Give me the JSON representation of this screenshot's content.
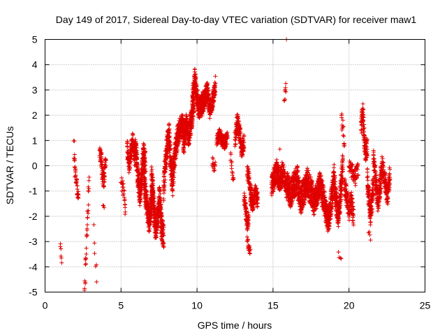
{
  "chart_data": {
    "type": "scatter",
    "title": "Day 149 of 2017, Sidereal Day-to-day VTEC variation (SDTVAR) for receiver maw1",
    "xlabel": "GPS time / hours",
    "ylabel": "SDTVAR / TECUs",
    "xlim": [
      0,
      25
    ],
    "ylim": [
      -5,
      5
    ],
    "xticks": [
      "0",
      "5",
      "10",
      "15",
      "20",
      "25"
    ],
    "yticks": [
      "-5",
      "-4",
      "-3",
      "-2",
      "-1",
      "0",
      "1",
      "2",
      "3",
      "4",
      "5"
    ],
    "grid": true,
    "marker": "+",
    "marker_color": "#e00000",
    "series": [
      {
        "name": "SDTVAR",
        "segments": [
          {
            "x0": 1.0,
            "x1": 1.1,
            "knots": [
              -3.0,
              -3.3,
              -3.7
            ],
            "spread": 0.2,
            "n": 6
          },
          {
            "x0": 1.9,
            "x1": 2.2,
            "knots": [
              0.8,
              -0.2,
              -0.5,
              -1.0,
              -1.3
            ],
            "spread": 0.3,
            "n": 40
          },
          {
            "x0": 2.6,
            "x1": 2.9,
            "knots": [
              -4.7,
              -3.9,
              -2.5,
              -1.8,
              -0.3
            ],
            "spread": 0.4,
            "n": 30
          },
          {
            "x0": 3.2,
            "x1": 3.4,
            "knots": [
              -2.5,
              -4.0,
              -4.3
            ],
            "spread": 0.3,
            "n": 6
          },
          {
            "x0": 3.6,
            "x1": 4.0,
            "knots": [
              0.6,
              0.3,
              -0.4,
              -0.6,
              0.5
            ],
            "spread": 0.35,
            "n": 80
          },
          {
            "x0": 3.8,
            "x1": 3.9,
            "knots": [
              -1.5,
              -1.6
            ],
            "spread": 0.1,
            "n": 3
          },
          {
            "x0": 5.0,
            "x1": 5.3,
            "knots": [
              -0.7,
              -0.8,
              -1.2,
              -2.0
            ],
            "spread": 0.3,
            "n": 25
          },
          {
            "x0": 5.4,
            "x1": 5.9,
            "knots": [
              0.8,
              0.0,
              0.5,
              1.0,
              0.3
            ],
            "spread": 0.35,
            "n": 120
          },
          {
            "x0": 5.9,
            "x1": 6.6,
            "knots": [
              0.8,
              0.3,
              -0.6,
              -1.2,
              -0.4,
              0.5,
              0.2
            ],
            "spread": 0.45,
            "n": 260
          },
          {
            "x0": 6.5,
            "x1": 7.1,
            "knots": [
              -0.3,
              -1.2,
              -1.8,
              -2.2,
              -1.6,
              -0.8
            ],
            "spread": 0.45,
            "n": 260
          },
          {
            "x0": 7.0,
            "x1": 7.8,
            "knots": [
              -0.4,
              -1.5,
              -2.5,
              -2.2,
              -1.2,
              -2.4,
              -2.8
            ],
            "spread": 0.5,
            "n": 320
          },
          {
            "x0": 7.8,
            "x1": 8.4,
            "knots": [
              -1.0,
              0.2,
              0.8,
              1.2,
              0.0,
              -0.8
            ],
            "spread": 0.5,
            "n": 200
          },
          {
            "x0": 8.4,
            "x1": 9.2,
            "knots": [
              -0.5,
              0.5,
              1.2,
              1.5,
              1.6,
              1.3
            ],
            "spread": 0.45,
            "n": 240
          },
          {
            "x0": 9.1,
            "x1": 9.8,
            "knots": [
              0.8,
              1.6,
              1.2,
              1.8,
              2.6
            ],
            "spread": 0.45,
            "n": 220
          },
          {
            "x0": 9.7,
            "x1": 10.4,
            "knots": [
              2.5,
              3.5,
              2.8,
              2.2,
              2.4,
              2.6
            ],
            "spread": 0.4,
            "n": 240
          },
          {
            "x0": 10.3,
            "x1": 11.2,
            "knots": [
              2.3,
              2.6,
              3.0,
              2.2,
              2.6,
              3.2
            ],
            "spread": 0.35,
            "n": 240
          },
          {
            "x0": 11.0,
            "x1": 11.2,
            "knots": [
              0.2,
              -0.1,
              0.1
            ],
            "spread": 0.2,
            "n": 15
          },
          {
            "x0": 11.3,
            "x1": 12.0,
            "knots": [
              1.0,
              1.3,
              1.0,
              0.9,
              1.1
            ],
            "spread": 0.25,
            "n": 150
          },
          {
            "x0": 12.2,
            "x1": 12.4,
            "knots": [
              0.4,
              -0.1,
              -0.6
            ],
            "spread": 0.2,
            "n": 15
          },
          {
            "x0": 12.5,
            "x1": 13.1,
            "knots": [
              1.0,
              1.8,
              1.3,
              0.6,
              0.9
            ],
            "spread": 0.35,
            "n": 140
          },
          {
            "x0": 13.1,
            "x1": 13.4,
            "knots": [
              -1.2,
              -1.8,
              -2.3,
              -2.0
            ],
            "spread": 0.3,
            "n": 70
          },
          {
            "x0": 13.3,
            "x1": 13.5,
            "knots": [
              -2.9,
              -3.2,
              -3.4
            ],
            "spread": 0.15,
            "n": 20
          },
          {
            "x0": 13.3,
            "x1": 13.6,
            "knots": [
              -0.2,
              -0.6,
              -1.2
            ],
            "spread": 0.3,
            "n": 50
          },
          {
            "x0": 13.5,
            "x1": 14.0,
            "knots": [
              -1.2,
              -1.5,
              -1.1,
              -1.4
            ],
            "spread": 0.35,
            "n": 110
          },
          {
            "x0": 14.9,
            "x1": 15.6,
            "knots": [
              -0.8,
              -0.5,
              -0.2,
              -0.6,
              -0.4
            ],
            "spread": 0.45,
            "n": 200
          },
          {
            "x0": 15.6,
            "x1": 15.9,
            "knots": [
              -0.2,
              -0.5,
              -0.9
            ],
            "spread": 0.4,
            "n": 60
          },
          {
            "x0": 15.75,
            "x1": 15.85,
            "knots": [
              2.6,
              3.1
            ],
            "spread": 0.2,
            "n": 8
          },
          {
            "x0": 15.85,
            "x1": 15.9,
            "knots": [
              5.0
            ],
            "spread": 0.0,
            "n": 1
          },
          {
            "x0": 15.4,
            "x1": 15.5,
            "knots": [
              0.7
            ],
            "spread": 0.05,
            "n": 1
          },
          {
            "x0": 15.9,
            "x1": 17.5,
            "knots": [
              -0.6,
              -1.2,
              -0.8,
              -0.5,
              -1.4,
              -1.0,
              -0.6,
              -1.2
            ],
            "spread": 0.55,
            "n": 480
          },
          {
            "x0": 17.5,
            "x1": 18.3,
            "knots": [
              -0.9,
              -1.5,
              -1.1,
              -0.7,
              -1.3
            ],
            "spread": 0.5,
            "n": 260
          },
          {
            "x0": 18.3,
            "x1": 19.0,
            "knots": [
              -1.2,
              -1.8,
              -2.2,
              -1.5,
              -0.6
            ],
            "spread": 0.5,
            "n": 240
          },
          {
            "x0": 19.0,
            "x1": 19.6,
            "knots": [
              -0.4,
              -1.4,
              -2.0,
              -1.0,
              0.0
            ],
            "spread": 0.5,
            "n": 200
          },
          {
            "x0": 19.3,
            "x1": 19.5,
            "knots": [
              -3.5,
              -3.7
            ],
            "spread": 0.1,
            "n": 4
          },
          {
            "x0": 19.5,
            "x1": 19.7,
            "knots": [
              2.0,
              1.5,
              0.8
            ],
            "spread": 0.3,
            "n": 15
          },
          {
            "x0": 19.7,
            "x1": 20.3,
            "knots": [
              -0.8,
              -1.2,
              -1.8,
              -1.4,
              -2.0
            ],
            "spread": 0.4,
            "n": 110
          },
          {
            "x0": 20.0,
            "x1": 20.6,
            "knots": [
              0.0,
              -0.2,
              -0.5,
              -0.1
            ],
            "spread": 0.3,
            "n": 60
          },
          {
            "x0": 20.8,
            "x1": 21.2,
            "knots": [
              1.5,
              2.2,
              1.0,
              0.5,
              0.8
            ],
            "spread": 0.4,
            "n": 110
          },
          {
            "x0": 21.2,
            "x1": 21.6,
            "knots": [
              -0.4,
              -1.2,
              -2.0,
              -1.5,
              -0.8
            ],
            "spread": 0.45,
            "n": 120
          },
          {
            "x0": 21.3,
            "x1": 21.4,
            "knots": [
              -2.6,
              -2.9
            ],
            "spread": 0.1,
            "n": 4
          },
          {
            "x0": 21.6,
            "x1": 22.2,
            "knots": [
              0.2,
              -0.6,
              -1.4,
              -0.8,
              0.0
            ],
            "spread": 0.45,
            "n": 150
          },
          {
            "x0": 22.2,
            "x1": 22.7,
            "knots": [
              0.0,
              -0.6,
              -1.2,
              -0.4
            ],
            "spread": 0.4,
            "n": 110
          }
        ]
      }
    ]
  }
}
